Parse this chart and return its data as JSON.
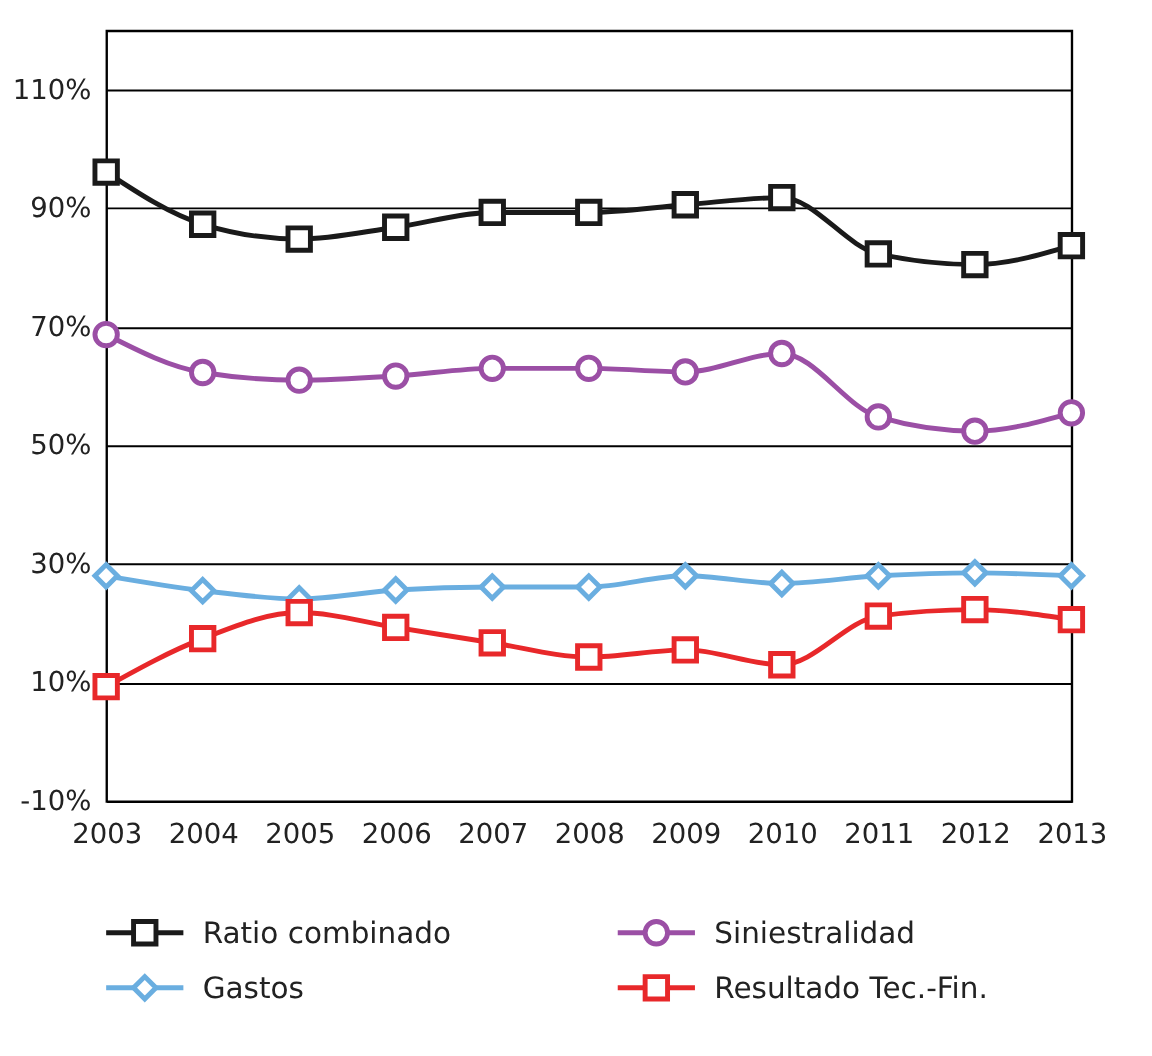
{
  "chart_data": {
    "type": "line",
    "categories": [
      "2003",
      "2004",
      "2005",
      "2006",
      "2007",
      "2008",
      "2009",
      "2010",
      "2011",
      "2012",
      "2013"
    ],
    "series": [
      {
        "name": "Ratio combinado",
        "color": "#1a1a1a",
        "marker": "square",
        "values": [
          96.1,
          87.3,
          84.8,
          86.8,
          89.3,
          89.3,
          90.6,
          91.8,
          82.3,
          80.5,
          83.7
        ]
      },
      {
        "name": "Siniestralidad",
        "color": "#9b4fa5",
        "marker": "circle",
        "values": [
          68.7,
          62.3,
          61.0,
          61.7,
          63.0,
          63.0,
          62.4,
          65.5,
          54.8,
          52.4,
          55.5
        ]
      },
      {
        "name": "Gastos",
        "color": "#6aaee0",
        "marker": "diamond",
        "values": [
          28.0,
          25.5,
          24.1,
          25.6,
          26.1,
          26.1,
          28.0,
          26.7,
          28.0,
          28.5,
          28.0
        ]
      },
      {
        "name": "Resultado Tec.-Fin.",
        "color": "#e8282a",
        "marker": "square",
        "values": [
          9.3,
          17.4,
          21.8,
          19.3,
          16.7,
          14.3,
          15.5,
          13.0,
          21.2,
          22.3,
          20.6
        ]
      }
    ],
    "ylim": [
      -10,
      120
    ],
    "yticks": [
      {
        "value": -10,
        "label": "-10%"
      },
      {
        "value": 10,
        "label": "10%"
      },
      {
        "value": 30,
        "label": "30%"
      },
      {
        "value": 50,
        "label": "50%"
      },
      {
        "value": 70,
        "label": "70%"
      },
      {
        "value": 90,
        "label": "90%"
      },
      {
        "value": 110,
        "label": "110%"
      }
    ],
    "grid": "y",
    "legend": "bottom",
    "line_style": "solid"
  }
}
